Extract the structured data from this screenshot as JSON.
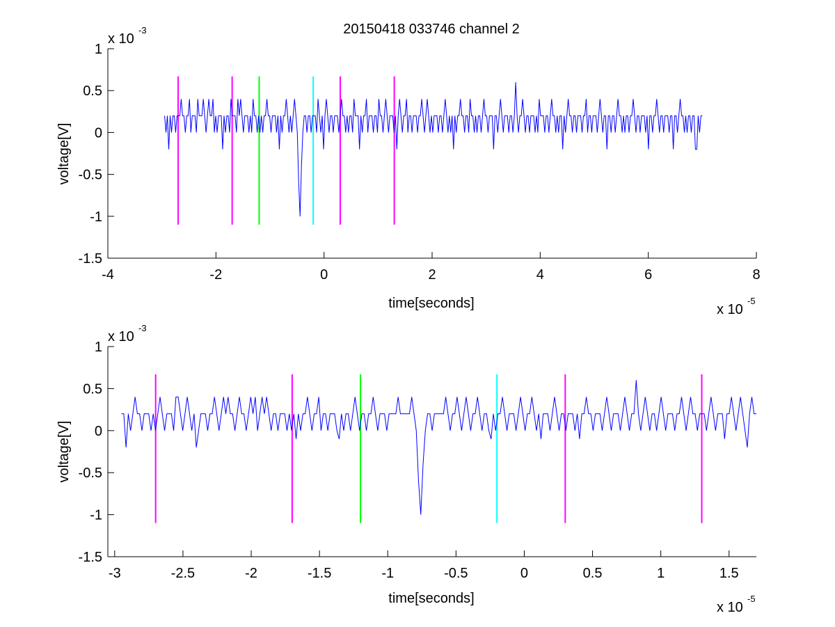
{
  "figure_title": "20150418 033746 channel 2",
  "colors": {
    "signal": "#0000ff",
    "magenta": "#ff00ff",
    "green": "#00ff00",
    "cyan": "#00ffff",
    "axes": "#000000"
  },
  "chart_data": [
    {
      "type": "line",
      "title": "20150418 033746 channel 2",
      "xlabel": "time[seconds]",
      "ylabel": "voltage[V]",
      "x_multiplier_label": {
        "base": "x 10",
        "exp": "-5"
      },
      "y_multiplier_label": {
        "base": "x 10",
        "exp": "-3"
      },
      "xlim": [
        -4,
        8
      ],
      "ylim": [
        -1.5,
        1
      ],
      "x_ticks": [
        -4,
        -2,
        0,
        2,
        4,
        6,
        8
      ],
      "x_tick_labels": [
        "-4",
        "-2",
        "0",
        "2",
        "4",
        "6",
        "8"
      ],
      "y_ticks": [
        -1.5,
        -1,
        -0.5,
        0,
        0.5,
        1
      ],
      "y_tick_labels": [
        "-1.5",
        "-1",
        "-0.5",
        "0",
        "0.5",
        "1"
      ],
      "grid": false,
      "signal_x_range": [
        -2.95,
        7.0
      ],
      "signal_values_mV": [
        0.2,
        0.0,
        0.2,
        -0.2,
        0.2,
        0.0,
        0.2,
        0.2,
        0.0,
        0.2,
        0.2,
        0.2,
        0.4,
        0.2,
        0.2,
        0.0,
        0.2,
        0.2,
        0.4,
        0.0,
        0.2,
        0.2,
        0.2,
        0.0,
        0.4,
        0.2,
        0.2,
        0.2,
        0.4,
        0.2,
        0.0,
        0.2,
        0.4,
        0.2,
        0.2,
        0.4,
        0.0,
        0.2,
        0.0,
        0.2,
        0.2,
        0.2,
        -0.2,
        0.2,
        0.0,
        0.2,
        0.2,
        0.0,
        0.4,
        0.2,
        0.2,
        0.2,
        0.0,
        0.4,
        0.2,
        0.4,
        0.2,
        0.0,
        0.2,
        0.2,
        0.2,
        0.0,
        0.2,
        0.0,
        0.4,
        0.2,
        0.2,
        0.0,
        0.2,
        0.0,
        0.2,
        0.0,
        0.2,
        0.2,
        0.4,
        0.2,
        0.2,
        0.0,
        0.2,
        0.2,
        0.2,
        0.0,
        0.2,
        -0.2,
        0.2,
        0.0,
        0.2,
        0.2,
        0.4,
        0.2,
        0.0,
        0.2,
        0.0,
        0.2,
        0.4,
        0.2,
        0.0,
        -0.6,
        -1.0,
        -0.4,
        0.0,
        0.2,
        0.2,
        0.0,
        0.2,
        0.2,
        0.0,
        0.2,
        0.2,
        0.2,
        0.0,
        0.4,
        0.2,
        0.0,
        0.2,
        -0.2,
        0.2,
        0.4,
        0.2,
        0.0,
        0.2,
        0.2,
        0.0,
        0.2,
        0.2,
        0.2,
        0.0,
        0.2,
        0.4,
        0.2,
        0.2,
        0.0,
        0.2,
        0.0,
        0.2,
        0.2,
        0.0,
        0.4,
        0.2,
        0.2,
        0.2,
        -0.2,
        0.2,
        0.0,
        0.2,
        0.2,
        0.4,
        0.0,
        0.2,
        0.2,
        0.2,
        0.0,
        0.2,
        0.2,
        0.0,
        0.4,
        0.2,
        0.2,
        0.0,
        0.2,
        0.4,
        0.2,
        0.0,
        0.2,
        0.2,
        0.2,
        0.0,
        0.2,
        -0.2,
        0.2,
        0.4,
        0.2,
        0.0,
        0.2,
        0.2,
        0.4,
        0.0,
        0.2,
        0.2,
        0.0,
        0.2,
        0.2,
        0.2,
        0.0,
        0.2,
        0.2,
        0.4,
        0.2,
        0.0,
        0.2,
        0.4,
        0.2,
        0.0,
        0.2,
        0.0,
        0.2,
        0.2,
        0.2,
        0.0,
        0.2,
        0.2,
        0.0,
        0.2,
        0.4,
        0.2,
        0.0,
        0.2,
        0.0,
        0.2,
        -0.2,
        0.2,
        0.0,
        0.2,
        0.2,
        0.4,
        0.2,
        0.2,
        0.0,
        0.2,
        0.2,
        0.0,
        0.4,
        0.2,
        0.2,
        0.0,
        0.2,
        0.0,
        0.2,
        0.2,
        0.0,
        0.2,
        0.4,
        0.2,
        0.2,
        0.0,
        0.2,
        0.2,
        0.2,
        -0.2,
        0.2,
        0.2,
        0.0,
        0.2,
        0.4,
        0.2,
        0.0,
        0.2,
        0.2,
        0.2,
        0.0,
        0.2,
        0.2,
        0.0,
        0.2,
        0.6,
        0.2,
        0.0,
        0.2,
        0.2,
        0.4,
        0.2,
        0.0,
        0.2,
        0.2,
        0.0,
        0.2,
        0.2,
        0.2,
        0.0,
        0.2,
        0.0,
        0.4,
        0.2,
        0.2,
        0.2,
        0.0,
        0.2,
        0.2,
        0.0,
        0.2,
        0.4,
        0.2,
        0.2,
        0.0,
        0.2,
        0.0,
        0.2,
        0.2,
        -0.2,
        0.2,
        0.0,
        0.2,
        0.4,
        0.2,
        0.2,
        0.0,
        0.2,
        0.2,
        0.0,
        0.2,
        0.2,
        0.2,
        0.0,
        0.2,
        0.2,
        0.4,
        0.0,
        0.2,
        0.2,
        0.0,
        0.2,
        0.2,
        0.2,
        0.0,
        0.2,
        0.4,
        0.2,
        0.0,
        0.2,
        0.2,
        -0.2,
        0.2,
        0.2,
        0.0,
        0.2,
        0.2,
        0.0,
        0.2,
        0.4,
        0.2,
        0.2,
        0.0,
        0.2,
        0.0,
        0.2,
        0.2,
        0.0,
        0.2,
        0.2,
        0.4,
        0.2,
        0.0,
        0.2,
        0.2,
        0.0,
        0.2,
        0.2,
        0.2,
        0.0,
        0.2,
        -0.2,
        0.2,
        0.2,
        0.0,
        0.2,
        0.2,
        0.4,
        0.2,
        0.0,
        0.2,
        0.2,
        0.0,
        0.2,
        0.2,
        0.2,
        0.0,
        0.2,
        0.2,
        -0.2,
        0.2,
        0.2,
        0.0,
        0.2,
        0.4,
        0.2,
        0.2,
        0.0,
        0.2,
        0.0,
        0.2,
        0.2,
        0.0,
        0.2,
        0.2,
        -0.2,
        -0.2,
        0.2,
        0.0,
        0.2,
        0.2
      ],
      "markers": [
        {
          "x": -2.7,
          "color": "magenta"
        },
        {
          "x": -1.7,
          "color": "magenta"
        },
        {
          "x": -1.2,
          "color": "green"
        },
        {
          "x": -0.2,
          "color": "cyan"
        },
        {
          "x": 0.3,
          "color": "magenta"
        },
        {
          "x": 1.3,
          "color": "magenta"
        }
      ],
      "marker_y_range": [
        -1.1,
        0.67
      ]
    },
    {
      "type": "line",
      "title": "",
      "xlabel": "time[seconds]",
      "ylabel": "voltage[V]",
      "x_multiplier_label": {
        "base": "x 10",
        "exp": "-5"
      },
      "y_multiplier_label": {
        "base": "x 10",
        "exp": "-3"
      },
      "xlim": [
        -3.05,
        1.7
      ],
      "ylim": [
        -1.5,
        1
      ],
      "x_ticks": [
        -3,
        -2.5,
        -2,
        -1.5,
        -1,
        -0.5,
        0,
        0.5,
        1,
        1.5
      ],
      "x_tick_labels": [
        "-3",
        "-2.5",
        "-2",
        "-1.5",
        "-1",
        "-0.5",
        "0",
        "0.5",
        "1",
        "1.5"
      ],
      "y_ticks": [
        -1.5,
        -1,
        -0.5,
        0,
        0.5,
        1
      ],
      "y_tick_labels": [
        "-1.5",
        "-1",
        "-0.5",
        "0",
        "0.5",
        "1"
      ],
      "grid": false,
      "signal_x_range": [
        -2.95,
        1.7
      ],
      "signal_values_mV": [
        0.2,
        0.2,
        -0.2,
        0.2,
        0.0,
        0.2,
        0.4,
        0.2,
        0.2,
        0.0,
        0.2,
        0.2,
        0.2,
        0.0,
        0.2,
        0.0,
        0.2,
        0.4,
        0.2,
        0.0,
        0.2,
        0.2,
        0.2,
        0.0,
        0.4,
        0.4,
        0.2,
        0.0,
        0.2,
        0.4,
        0.2,
        0.0,
        0.2,
        -0.2,
        0.0,
        0.2,
        0.2,
        0.2,
        0.0,
        0.2,
        0.2,
        0.4,
        0.2,
        0.0,
        0.2,
        0.4,
        0.2,
        0.4,
        0.2,
        0.2,
        0.0,
        0.2,
        0.4,
        0.2,
        0.2,
        0.0,
        0.2,
        0.4,
        0.2,
        0.4,
        0.0,
        0.2,
        0.4,
        0.2,
        0.4,
        0.2,
        0.0,
        0.2,
        0.2,
        0.0,
        0.2,
        0.2,
        0.2,
        0.0,
        0.2,
        0.0,
        0.2,
        -0.1,
        0.2,
        0.0,
        0.2,
        0.2,
        0.4,
        0.2,
        0.0,
        0.2,
        0.2,
        0.4,
        0.0,
        0.2,
        0.2,
        0.0,
        0.2,
        0.2,
        0.2,
        0.0,
        -0.1,
        0.2,
        0.0,
        0.2,
        0.2,
        0.0,
        0.2,
        0.4,
        0.2,
        0.0,
        0.2,
        0.2,
        0.0,
        0.2,
        0.2,
        0.4,
        0.2,
        0.0,
        0.2,
        0.2,
        0.2,
        0.0,
        0.2,
        0.2,
        0.2,
        0.2,
        0.4,
        0.2,
        0.2,
        0.2,
        0.2,
        0.2,
        0.4,
        0.2,
        0.0,
        -0.6,
        -1.0,
        -0.4,
        0.0,
        0.2,
        0.2,
        0.0,
        0.2,
        0.2,
        0.2,
        0.2,
        0.2,
        0.4,
        0.2,
        0.0,
        0.2,
        0.2,
        0.4,
        0.2,
        0.0,
        0.2,
        0.4,
        0.2,
        0.0,
        0.2,
        0.2,
        0.4,
        0.2,
        0.0,
        0.2,
        0.2,
        0.0,
        -0.1,
        0.2,
        0.0,
        0.2,
        0.2,
        0.4,
        0.2,
        0.0,
        0.2,
        0.2,
        0.2,
        0.0,
        0.2,
        0.4,
        0.2,
        0.0,
        0.2,
        0.2,
        0.4,
        0.2,
        0.0,
        0.2,
        -0.1,
        0.2,
        0.2,
        0.2,
        0.0,
        0.2,
        0.4,
        0.2,
        0.0,
        0.2,
        0.2,
        0.0,
        0.2,
        0.2,
        0.2,
        0.0,
        0.2,
        -0.1,
        0.2,
        0.2,
        0.4,
        0.2,
        0.2,
        0.0,
        0.2,
        0.2,
        0.2,
        0.0,
        0.2,
        0.4,
        0.2,
        0.0,
        0.2,
        0.2,
        0.2,
        0.0,
        0.2,
        0.4,
        0.2,
        0.0,
        0.2,
        0.2,
        0.6,
        0.2,
        0.0,
        0.2,
        0.4,
        0.2,
        0.0,
        0.2,
        0.2,
        0.0,
        0.2,
        0.4,
        0.2,
        0.0,
        0.2,
        0.2,
        0.2,
        0.0,
        0.2,
        0.2,
        0.4,
        0.2,
        0.0,
        0.2,
        0.4,
        0.2,
        0.2,
        0.0,
        0.2,
        0.2,
        0.2,
        0.0,
        0.2,
        0.4,
        0.2,
        0.0,
        0.2,
        0.2,
        0.2,
        -0.1,
        0.2,
        0.2,
        0.4,
        0.2,
        0.0,
        0.2,
        0.4,
        0.2,
        0.0,
        -0.2,
        0.2,
        0.4,
        0.2,
        0.2
      ],
      "markers": [
        {
          "x": -2.7,
          "color": "magenta"
        },
        {
          "x": -1.7,
          "color": "magenta"
        },
        {
          "x": -1.2,
          "color": "green"
        },
        {
          "x": -0.2,
          "color": "cyan"
        },
        {
          "x": 0.3,
          "color": "magenta"
        },
        {
          "x": 1.3,
          "color": "magenta"
        }
      ],
      "marker_y_range": [
        -1.1,
        0.67
      ]
    }
  ]
}
